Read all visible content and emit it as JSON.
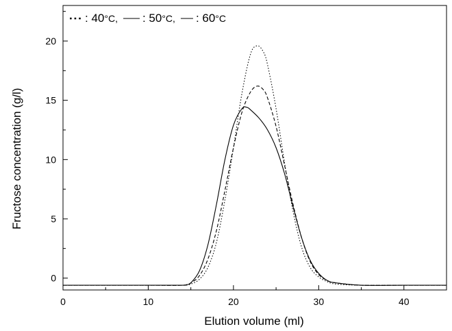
{
  "chart_data": {
    "type": "line",
    "xlabel": "Elution volume (ml)",
    "ylabel": "Fructose concentration (g/l)",
    "xlim": [
      0,
      45
    ],
    "ylim": [
      -1,
      23
    ],
    "x_ticks": [
      0,
      10,
      20,
      30,
      40
    ],
    "y_ticks": [
      0,
      5,
      10,
      15,
      20
    ],
    "grid": false,
    "legend_placement": "top-left",
    "series": [
      {
        "name": "40 °C",
        "legend_value": "40",
        "legend_unit": "°C",
        "legend_sep": ",",
        "line_style": "dotted",
        "color": "#000000",
        "x": [
          0,
          5,
          10,
          14,
          15,
          16,
          17,
          18,
          19,
          20,
          21,
          22,
          22.8,
          23.5,
          24,
          25,
          26,
          27,
          28,
          29,
          30,
          31,
          32,
          35,
          40,
          45
        ],
        "y": [
          -0.6,
          -0.6,
          -0.6,
          -0.6,
          -0.5,
          -0.1,
          0.9,
          3.0,
          6.6,
          11.0,
          15.6,
          18.9,
          19.6,
          19.1,
          18.0,
          14.3,
          9.7,
          5.6,
          2.6,
          0.9,
          0.1,
          -0.3,
          -0.5,
          -0.6,
          -0.6,
          -0.6
        ]
      },
      {
        "name": "50 °C",
        "legend_value": "50",
        "legend_unit": "°C",
        "legend_sep": ",",
        "line_style": "dashed",
        "color": "#000000",
        "x": [
          0,
          5,
          10,
          14,
          15,
          16,
          17,
          18,
          19,
          20,
          21,
          22,
          22.8,
          23.5,
          24,
          25,
          26,
          27,
          28,
          29,
          30,
          31,
          32,
          35,
          40,
          45
        ],
        "y": [
          -0.6,
          -0.6,
          -0.6,
          -0.6,
          -0.4,
          0.2,
          1.6,
          4.0,
          7.4,
          11.0,
          14.0,
          15.7,
          16.2,
          15.9,
          15.2,
          12.8,
          9.5,
          6.2,
          3.4,
          1.4,
          0.3,
          -0.2,
          -0.4,
          -0.6,
          -0.6,
          -0.6
        ]
      },
      {
        "name": "60 °C",
        "legend_value": "60",
        "legend_unit": "°C",
        "legend_sep": "",
        "line_style": "solid",
        "color": "#000000",
        "x": [
          0,
          5,
          10,
          14,
          14.5,
          15,
          16,
          17,
          18,
          19,
          20,
          21,
          21.6,
          22,
          23,
          24,
          25,
          26,
          27,
          28,
          29,
          30,
          31,
          32,
          35,
          40,
          45
        ],
        "y": [
          -0.6,
          -0.6,
          -0.6,
          -0.6,
          -0.55,
          -0.4,
          0.6,
          2.8,
          6.2,
          10.0,
          12.9,
          14.3,
          14.4,
          14.2,
          13.5,
          12.5,
          11.0,
          8.8,
          6.0,
          3.4,
          1.5,
          0.4,
          -0.2,
          -0.4,
          -0.6,
          -0.6,
          -0.6
        ]
      }
    ]
  }
}
